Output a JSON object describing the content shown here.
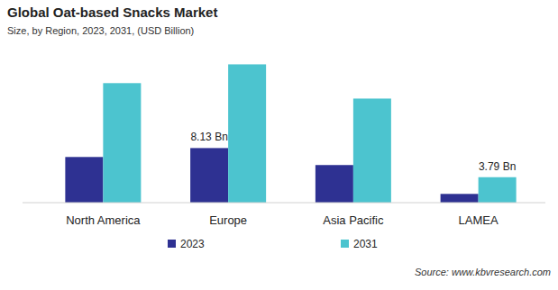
{
  "chart_data": {
    "type": "bar",
    "title": "Global Oat-based Snacks Market",
    "subtitle": "Size, by Region, 2023, 2031, (USD Billion)",
    "source": "Source: www.kbvresearch.com",
    "categories": [
      "North America",
      "Europe",
      "Asia Pacific",
      "LAMEA"
    ],
    "series": [
      {
        "name": "2023",
        "color": "#2e3192",
        "values": [
          6.8,
          8.13,
          5.6,
          1.3
        ],
        "value_labels": [
          null,
          "8.13 Bn",
          null,
          null
        ]
      },
      {
        "name": "2031",
        "color": "#4cc4cf",
        "values": [
          17.8,
          20.6,
          15.5,
          3.79
        ],
        "value_labels": [
          null,
          null,
          null,
          "3.79 Bn"
        ]
      }
    ],
    "ylim": [
      0,
      22
    ],
    "grid": false,
    "legend": "bottom",
    "data_labels": true,
    "tick_labels": "x"
  }
}
